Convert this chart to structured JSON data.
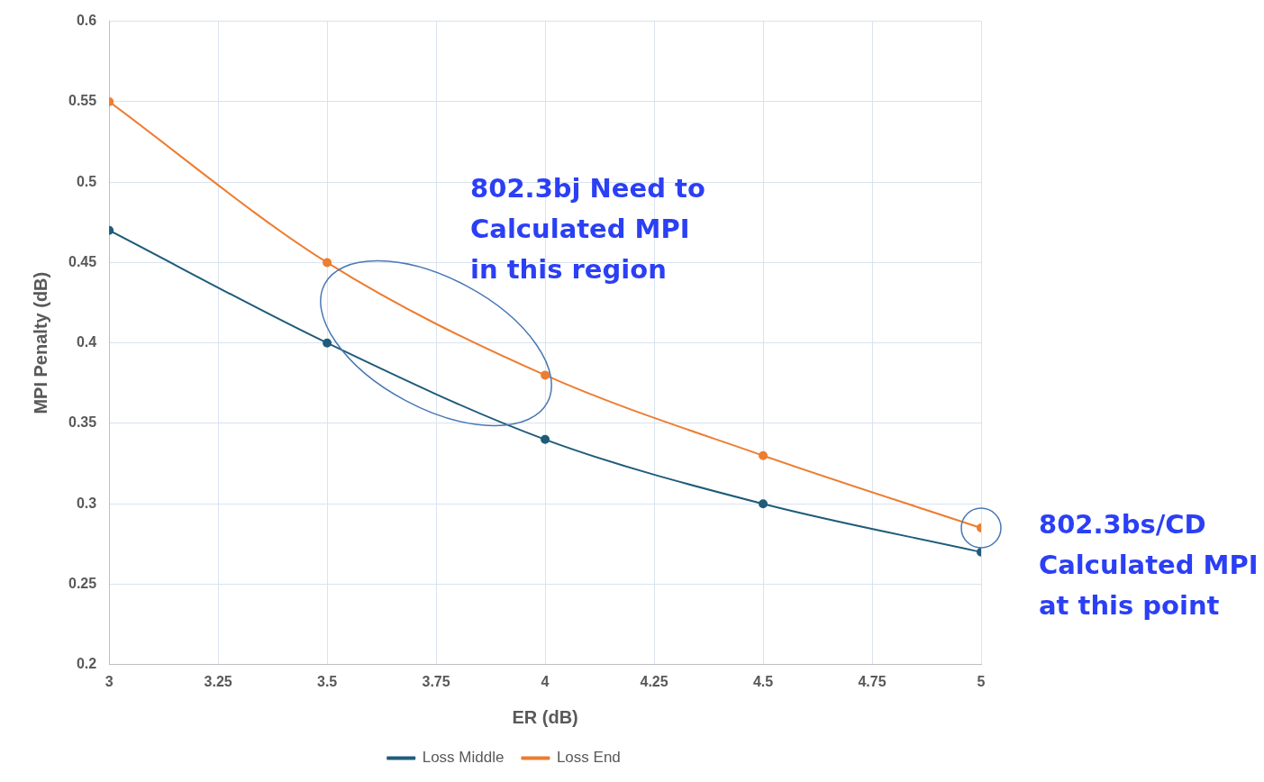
{
  "chart_data": {
    "type": "line",
    "xlabel": "ER (dB)",
    "ylabel": "MPI Penalty (dB)",
    "x": [
      3,
      3.5,
      4,
      4.5,
      5
    ],
    "series": [
      {
        "name": "Loss Middle",
        "color": "#1f5c7a",
        "values": [
          0.47,
          0.4,
          0.34,
          0.3,
          0.27
        ]
      },
      {
        "name": "Loss End",
        "color": "#ed7d31",
        "values": [
          0.55,
          0.45,
          0.38,
          0.33,
          0.285
        ]
      }
    ],
    "xlim": [
      3,
      5
    ],
    "xticks": [
      3,
      3.25,
      3.5,
      3.75,
      4,
      4.25,
      4.5,
      4.75,
      5
    ],
    "ylim": [
      0.2,
      0.6
    ],
    "yticks": [
      0.2,
      0.25,
      0.3,
      0.35,
      0.4,
      0.45,
      0.5,
      0.55,
      0.6
    ],
    "grid": true,
    "legend": "bottom",
    "marker": "circle",
    "line_style": "solid",
    "annotations": [
      "802.3bj Need to\nCalculated MPI\nin this region",
      {
        "text": "802.3bs/CD\nCalculated MPI\nat this point",
        "x": 5,
        "y": 0.285
      }
    ]
  }
}
